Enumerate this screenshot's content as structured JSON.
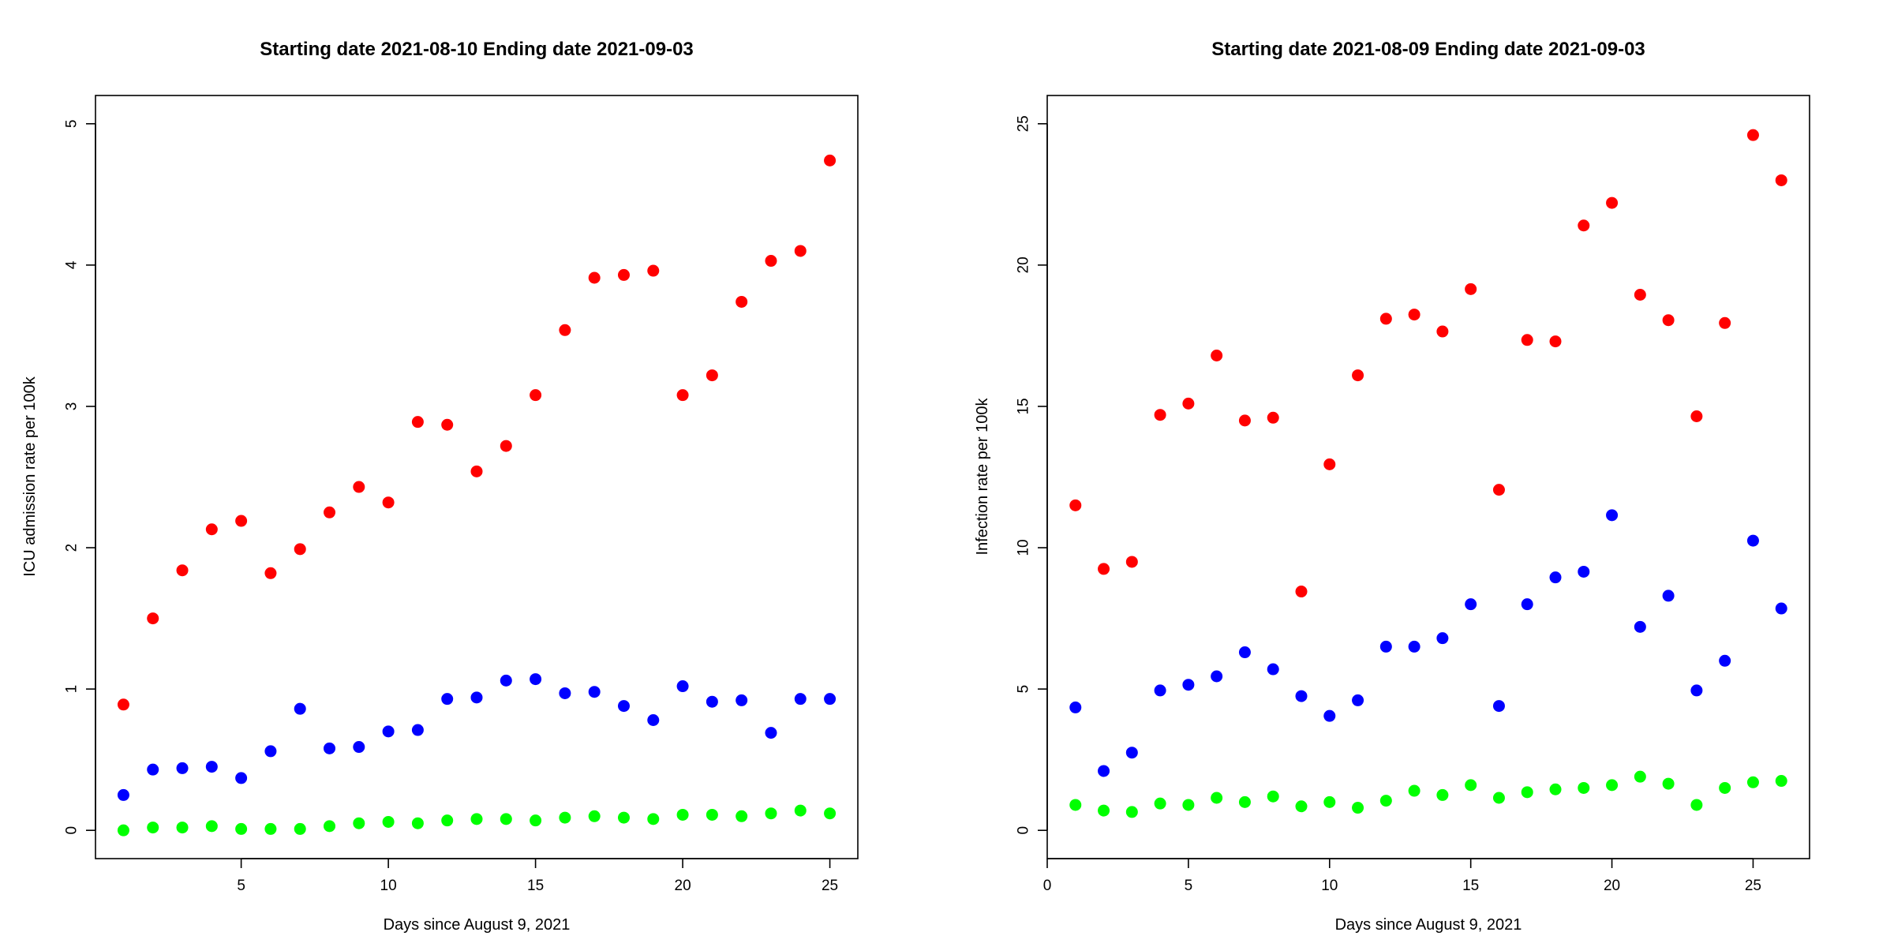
{
  "chart_data": [
    {
      "type": "scatter",
      "title": "Starting date 2021-08-10 Ending date  2021-09-03",
      "xlabel": "Days since August 9, 2021",
      "ylabel": "ICU admission rate per 100k",
      "xlim": [
        0.05,
        25.95
      ],
      "ylim": [
        -0.2,
        5.2
      ],
      "xticks": [
        5,
        10,
        15,
        20,
        25
      ],
      "yticks": [
        0,
        1,
        2,
        3,
        4,
        5
      ],
      "grid": false,
      "legend": "none",
      "x": [
        1,
        2,
        3,
        4,
        5,
        6,
        7,
        8,
        9,
        10,
        11,
        12,
        13,
        14,
        15,
        16,
        17,
        18,
        19,
        20,
        21,
        22,
        23,
        24,
        25
      ],
      "series": [
        {
          "color": "#ff0000",
          "values": [
            0.89,
            1.5,
            1.84,
            2.13,
            2.19,
            1.82,
            1.99,
            2.25,
            2.43,
            2.32,
            2.89,
            2.87,
            2.54,
            2.72,
            3.08,
            3.54,
            3.91,
            3.93,
            3.96,
            3.08,
            3.22,
            3.74,
            4.03,
            4.1,
            4.74
          ]
        },
        {
          "color": "#0000ff",
          "values": [
            0.25,
            0.43,
            0.44,
            0.45,
            0.37,
            0.56,
            0.86,
            0.58,
            0.59,
            0.7,
            0.71,
            0.93,
            0.94,
            1.06,
            1.07,
            0.97,
            0.98,
            0.88,
            0.78,
            1.02,
            0.91,
            0.92,
            0.69,
            0.93,
            0.93
          ]
        },
        {
          "color": "#00ff00",
          "values": [
            0.0,
            0.02,
            0.02,
            0.03,
            0.01,
            0.01,
            0.01,
            0.03,
            0.05,
            0.06,
            0.05,
            0.07,
            0.08,
            0.08,
            0.07,
            0.09,
            0.1,
            0.09,
            0.08,
            0.11,
            0.11,
            0.1,
            0.12,
            0.14,
            0.12
          ]
        }
      ]
    },
    {
      "type": "scatter",
      "title": "Starting date 2021-08-09 Ending date  2021-09-03",
      "xlabel": "Days since August 9, 2021",
      "ylabel": "Infection rate per 100k",
      "xlim": [
        0,
        27
      ],
      "ylim": [
        -1,
        26
      ],
      "xticks": [
        0,
        5,
        10,
        15,
        20,
        25
      ],
      "yticks": [
        0,
        5,
        10,
        15,
        20,
        25
      ],
      "grid": false,
      "legend": "none",
      "x": [
        1,
        2,
        3,
        4,
        5,
        6,
        7,
        8,
        9,
        10,
        11,
        12,
        13,
        14,
        15,
        16,
        17,
        18,
        19,
        20,
        21,
        22,
        23,
        24,
        25,
        26
      ],
      "series": [
        {
          "color": "#ff0000",
          "values": [
            11.5,
            9.25,
            9.5,
            14.7,
            15.1,
            16.8,
            14.5,
            14.6,
            8.45,
            12.95,
            16.1,
            18.1,
            18.25,
            17.65,
            19.15,
            12.05,
            17.35,
            17.3,
            21.4,
            22.2,
            18.95,
            18.05,
            14.65,
            17.95,
            24.6,
            23.0
          ]
        },
        {
          "color": "#0000ff",
          "values": [
            4.35,
            2.1,
            2.75,
            4.95,
            5.15,
            5.45,
            6.3,
            5.7,
            4.75,
            4.05,
            4.6,
            6.5,
            6.5,
            6.8,
            8.0,
            4.4,
            8.0,
            8.95,
            9.15,
            11.15,
            7.2,
            8.3,
            4.95,
            6.0,
            10.25,
            7.85
          ]
        },
        {
          "color": "#00ff00",
          "values": [
            0.9,
            0.7,
            0.65,
            0.95,
            0.9,
            1.15,
            1.0,
            1.2,
            0.85,
            1.0,
            0.8,
            1.05,
            1.4,
            1.25,
            1.6,
            1.15,
            1.35,
            1.45,
            1.5,
            1.6,
            1.9,
            1.65,
            0.9,
            1.5,
            1.7,
            1.75
          ]
        }
      ]
    }
  ]
}
